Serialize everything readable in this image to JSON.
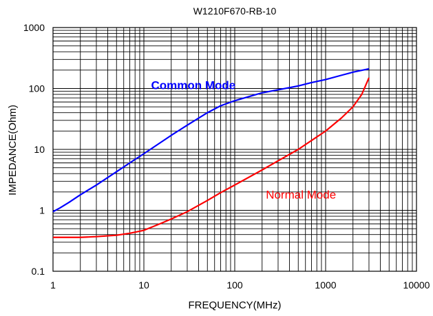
{
  "chart_data": {
    "type": "line",
    "title": "W1210F670-RB-10",
    "xlabel": "FREQUENCY(MHz)",
    "ylabel": "IMPEDANCE(Ohm)",
    "xscale": "log",
    "yscale": "log",
    "xlim": [
      1,
      10000
    ],
    "ylim": [
      0.1,
      1000
    ],
    "grid": true,
    "x_tick_labels": [
      "1",
      "10",
      "100",
      "1000",
      "10000"
    ],
    "y_tick_labels": [
      "0.1",
      "1",
      "10",
      "100",
      "1000"
    ],
    "series": [
      {
        "name": "Common Mode",
        "color": "#0000ff",
        "x": [
          1,
          1.2,
          1.5,
          2,
          3,
          5,
          7,
          10,
          20,
          30,
          50,
          70,
          100,
          150,
          200,
          300,
          500,
          700,
          1000,
          1500,
          2000,
          3000
        ],
        "y": [
          0.95,
          1.1,
          1.35,
          1.8,
          2.6,
          4.3,
          6.0,
          8.5,
          17,
          25,
          40,
          52,
          63,
          75,
          85,
          95,
          110,
          125,
          140,
          165,
          185,
          210
        ]
      },
      {
        "name": "Normal Mode",
        "color": "#ff0000",
        "x": [
          1,
          2,
          3,
          5,
          7,
          10,
          15,
          20,
          30,
          50,
          70,
          100,
          200,
          300,
          500,
          700,
          1000,
          1500,
          2000,
          2500,
          3000
        ],
        "y": [
          0.36,
          0.36,
          0.37,
          0.39,
          0.42,
          0.47,
          0.6,
          0.72,
          0.95,
          1.45,
          1.95,
          2.6,
          4.6,
          6.5,
          10,
          14,
          20,
          33,
          50,
          80,
          150
        ]
      }
    ]
  }
}
